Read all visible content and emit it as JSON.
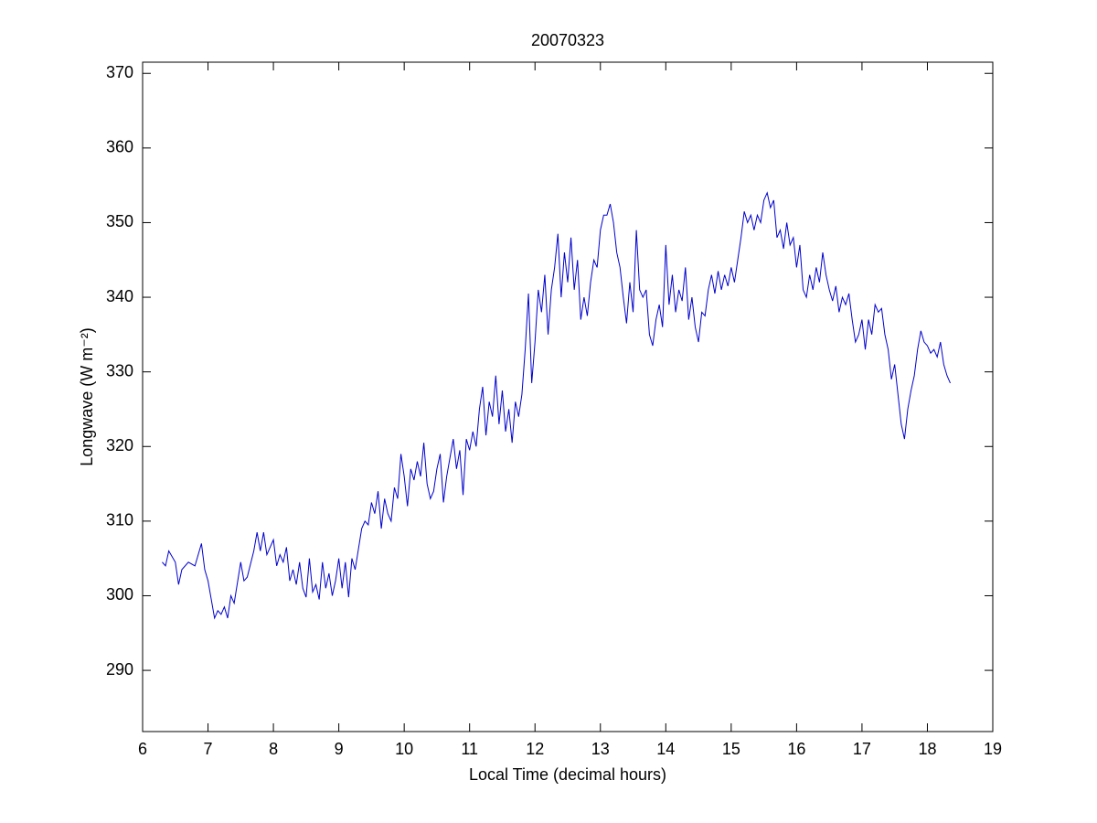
{
  "chart_data": {
    "type": "line",
    "title": "20070323",
    "xlabel": "Local Time (decimal hours)",
    "ylabel": "Longwave (W m⁻²)",
    "xlim": [
      6,
      19
    ],
    "xticks": [
      6,
      7,
      8,
      9,
      10,
      11,
      12,
      13,
      14,
      15,
      16,
      17,
      18,
      19
    ],
    "ylim": [
      281.8,
      371.5
    ],
    "yticks": [
      290,
      300,
      310,
      320,
      330,
      340,
      350,
      360,
      370
    ],
    "grid": false,
    "series": [
      {
        "color": "#0000cc",
        "x": [
          6.3,
          6.35,
          6.4,
          6.5,
          6.55,
          6.6,
          6.7,
          6.8,
          6.9,
          6.95,
          7.0,
          7.1,
          7.15,
          7.2,
          7.25,
          7.3,
          7.35,
          7.4,
          7.5,
          7.55,
          7.6,
          7.7,
          7.75,
          7.8,
          7.85,
          7.9,
          8.0,
          8.05,
          8.1,
          8.15,
          8.2,
          8.25,
          8.3,
          8.35,
          8.4,
          8.45,
          8.5,
          8.55,
          8.6,
          8.65,
          8.7,
          8.75,
          8.8,
          8.85,
          8.9,
          8.95,
          9.0,
          9.05,
          9.1,
          9.15,
          9.2,
          9.25,
          9.35,
          9.4,
          9.45,
          9.5,
          9.55,
          9.6,
          9.65,
          9.7,
          9.75,
          9.8,
          9.85,
          9.9,
          9.95,
          10.0,
          10.05,
          10.1,
          10.15,
          10.2,
          10.25,
          10.3,
          10.35,
          10.4,
          10.45,
          10.5,
          10.55,
          10.6,
          10.65,
          10.7,
          10.75,
          10.8,
          10.85,
          10.9,
          10.95,
          11.0,
          11.05,
          11.1,
          11.15,
          11.2,
          11.25,
          11.3,
          11.35,
          11.4,
          11.45,
          11.5,
          11.55,
          11.6,
          11.65,
          11.7,
          11.75,
          11.8,
          11.85,
          11.9,
          11.95,
          12.0,
          12.05,
          12.1,
          12.15,
          12.2,
          12.25,
          12.3,
          12.35,
          12.4,
          12.45,
          12.5,
          12.55,
          12.6,
          12.65,
          12.7,
          12.75,
          12.8,
          12.85,
          12.9,
          12.95,
          13.0,
          13.05,
          13.1,
          13.15,
          13.2,
          13.25,
          13.3,
          13.35,
          13.4,
          13.45,
          13.5,
          13.55,
          13.6,
          13.65,
          13.7,
          13.75,
          13.8,
          13.85,
          13.9,
          13.95,
          14.0,
          14.05,
          14.1,
          14.15,
          14.2,
          14.25,
          14.3,
          14.35,
          14.4,
          14.45,
          14.5,
          14.55,
          14.6,
          14.65,
          14.7,
          14.75,
          14.8,
          14.85,
          14.9,
          14.95,
          15.0,
          15.05,
          15.1,
          15.15,
          15.2,
          15.25,
          15.3,
          15.35,
          15.4,
          15.45,
          15.5,
          15.55,
          15.6,
          15.65,
          15.7,
          15.75,
          15.8,
          15.85,
          15.9,
          15.95,
          16.0,
          16.05,
          16.1,
          16.15,
          16.2,
          16.25,
          16.3,
          16.35,
          16.4,
          16.45,
          16.5,
          16.55,
          16.6,
          16.65,
          16.7,
          16.75,
          16.8,
          16.85,
          16.9,
          16.95,
          17.0,
          17.05,
          17.1,
          17.15,
          17.2,
          17.25,
          17.3,
          17.35,
          17.4,
          17.45,
          17.5,
          17.55,
          17.6,
          17.65,
          17.7,
          17.75,
          17.8,
          17.85,
          17.9,
          17.95,
          18.0,
          18.05,
          18.1,
          18.15,
          18.2,
          18.25,
          18.3,
          18.35
        ],
        "values": [
          304.5,
          304,
          306,
          304.5,
          301.5,
          303.5,
          304.5,
          304,
          307,
          303.5,
          302,
          297,
          298,
          297.5,
          298.5,
          297,
          300,
          299,
          304.5,
          302,
          302.5,
          306,
          308.5,
          306,
          308.5,
          305.5,
          307.5,
          304,
          305.5,
          304.5,
          306.5,
          302,
          303.5,
          301.5,
          304.5,
          301,
          299.8,
          305,
          300.5,
          301.5,
          299.5,
          304.5,
          301,
          303,
          300,
          302,
          305,
          301,
          304.5,
          299.8,
          305,
          303.5,
          309,
          310,
          309.5,
          312.5,
          311,
          314,
          309,
          313,
          311,
          310,
          314.5,
          313,
          319,
          316,
          312,
          317,
          315.5,
          318,
          316,
          320.5,
          315,
          313,
          314,
          317,
          319,
          312.5,
          316,
          318.5,
          321,
          317,
          319.5,
          313.5,
          321,
          319.5,
          322,
          320,
          325,
          328,
          321.5,
          326,
          324,
          329.5,
          323,
          327.5,
          322,
          325,
          320.5,
          326,
          324,
          327,
          333,
          340.5,
          328.5,
          334,
          341,
          338,
          343,
          335,
          341,
          344,
          348.5,
          340,
          346,
          342,
          348,
          341,
          345,
          337,
          340,
          337.5,
          342,
          345,
          344,
          349,
          351,
          351,
          352.5,
          350,
          346,
          344,
          340,
          336.5,
          342,
          338,
          349,
          341,
          340,
          341,
          335,
          333.5,
          337,
          339,
          336,
          347,
          339,
          343,
          338,
          341,
          339.5,
          344,
          337,
          340,
          336,
          334,
          338,
          337.5,
          341,
          343,
          340.5,
          343.5,
          341,
          343,
          341.5,
          344,
          342,
          345,
          348,
          351.5,
          350,
          351,
          349,
          351,
          350,
          353,
          354,
          352,
          353,
          348,
          349,
          346.5,
          350,
          347,
          348,
          344,
          347,
          341,
          340,
          343,
          341,
          344,
          342,
          346,
          343,
          341,
          339.5,
          341.5,
          338,
          340,
          339,
          340.5,
          337,
          334,
          335,
          337,
          333,
          337,
          335,
          339,
          338,
          338.5,
          335,
          333,
          329,
          331,
          327,
          323,
          321,
          325,
          327.5,
          329.5,
          333,
          335.5,
          334,
          333.5,
          332.5,
          333,
          332,
          334,
          331,
          329.5,
          328.5
        ]
      }
    ]
  }
}
